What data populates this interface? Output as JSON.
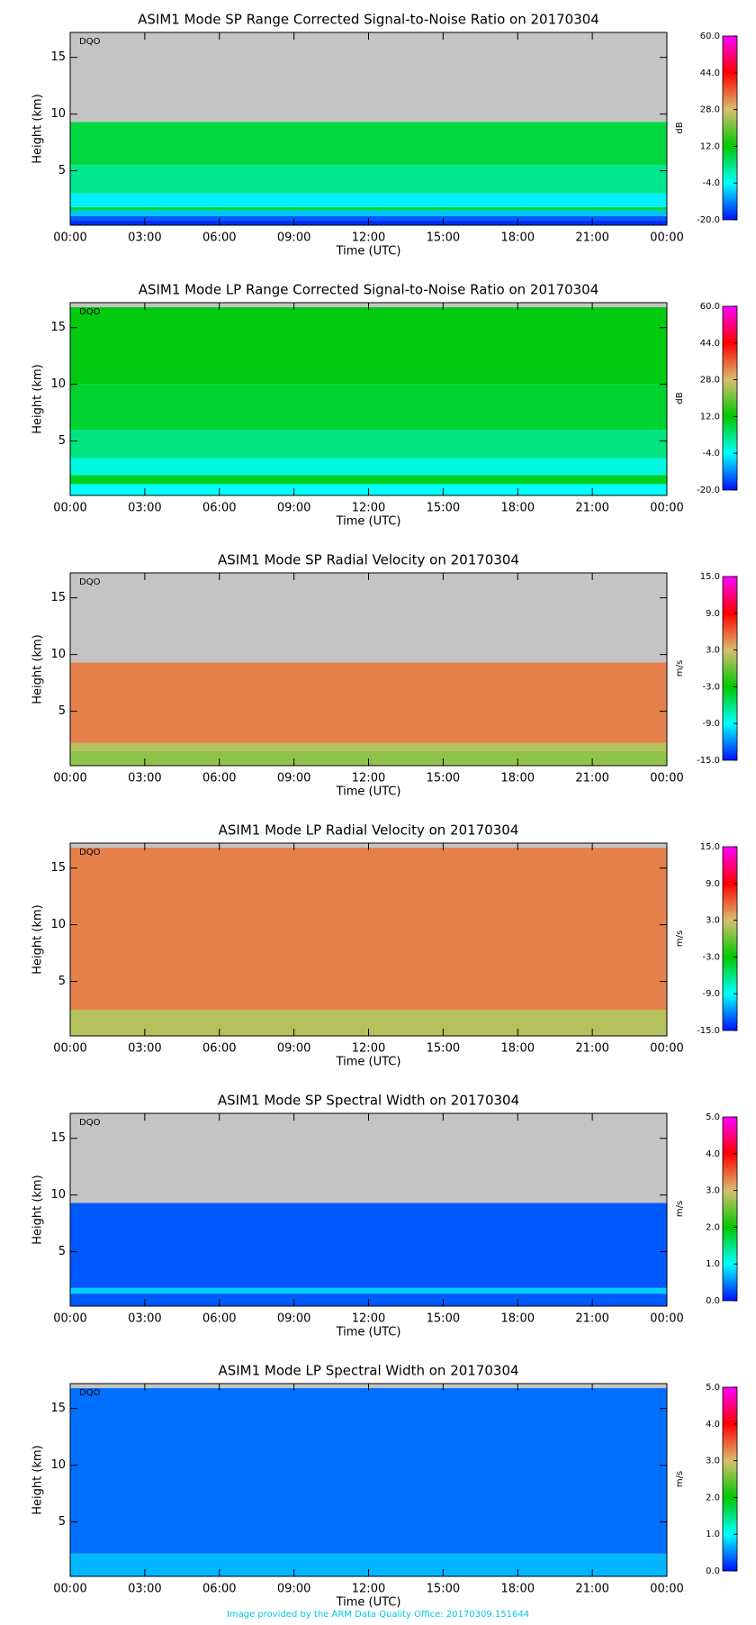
{
  "chart_data": [
    {
      "type": "heatmap",
      "title": "ASIM1 Mode SP Range Corrected Signal-to-Noise Ratio on 20170304",
      "xlabel": "Time (UTC)",
      "ylabel": "Height (km)",
      "annotation": "DQO",
      "xlim": [
        0,
        24
      ],
      "xticks": [
        {
          "value": 0,
          "label": "00:00"
        },
        {
          "value": 3,
          "label": "03:00"
        },
        {
          "value": 6,
          "label": "06:00"
        },
        {
          "value": 9,
          "label": "09:00"
        },
        {
          "value": 12,
          "label": "12:00"
        },
        {
          "value": 15,
          "label": "15:00"
        },
        {
          "value": 18,
          "label": "18:00"
        },
        {
          "value": 21,
          "label": "21:00"
        },
        {
          "value": 24,
          "label": "00:00"
        }
      ],
      "ylim": [
        0.2,
        17.2
      ],
      "yticks": [
        5,
        10,
        15
      ],
      "y_edges": [
        0.2,
        0.6,
        1.0,
        1.5,
        1.8,
        3.0,
        5.5,
        9.3,
        17.2
      ],
      "values": [
        -18,
        -15,
        -8,
        8,
        -5,
        3,
        8,
        null
      ],
      "colorbar_label": "dB",
      "zlim": [
        -20,
        60
      ],
      "zticks": [
        {
          "value": -20,
          "label": "-20.0"
        },
        {
          "value": -4,
          "label": "-4.0"
        },
        {
          "value": 12,
          "label": "12.0"
        },
        {
          "value": 28,
          "label": "28.0"
        },
        {
          "value": 44,
          "label": "44.0"
        },
        {
          "value": 60,
          "label": "60.0"
        }
      ],
      "colormap": [
        "#0010ff",
        "#00ffff",
        "#00c800",
        "#d8c070",
        "#ff0000",
        "#ff00ff"
      ],
      "missing_color": "#c4c4c4"
    },
    {
      "type": "heatmap",
      "title": "ASIM1 Mode LP Range Corrected Signal-to-Noise Ratio on 20170304",
      "xlabel": "Time (UTC)",
      "ylabel": "Height (km)",
      "annotation": "DQO",
      "xlim": [
        0,
        24
      ],
      "xticks": [
        {
          "value": 0,
          "label": "00:00"
        },
        {
          "value": 3,
          "label": "03:00"
        },
        {
          "value": 6,
          "label": "06:00"
        },
        {
          "value": 9,
          "label": "09:00"
        },
        {
          "value": 12,
          "label": "12:00"
        },
        {
          "value": 15,
          "label": "15:00"
        },
        {
          "value": 18,
          "label": "18:00"
        },
        {
          "value": 21,
          "label": "21:00"
        },
        {
          "value": 24,
          "label": "00:00"
        }
      ],
      "ylim": [
        0.2,
        17.2
      ],
      "yticks": [
        5,
        10,
        15
      ],
      "y_edges": [
        0.2,
        1.2,
        2.0,
        3.5,
        6.0,
        10.0,
        16.8,
        17.2
      ],
      "values": [
        -4,
        10,
        -2,
        4,
        9,
        11,
        null
      ],
      "colorbar_label": "dB",
      "zlim": [
        -20,
        60
      ],
      "zticks": [
        {
          "value": -20,
          "label": "-20.0"
        },
        {
          "value": -4,
          "label": "-4.0"
        },
        {
          "value": 12,
          "label": "12.0"
        },
        {
          "value": 28,
          "label": "28.0"
        },
        {
          "value": 44,
          "label": "44.0"
        },
        {
          "value": 60,
          "label": "60.0"
        }
      ],
      "colormap": [
        "#0010ff",
        "#00ffff",
        "#00c800",
        "#d8c070",
        "#ff0000",
        "#ff00ff"
      ],
      "missing_color": "#c4c4c4"
    },
    {
      "type": "heatmap",
      "title": "ASIM1 Mode SP Radial Velocity  on 20170304",
      "xlabel": "Time (UTC)",
      "ylabel": "Height (km)",
      "annotation": "DQO",
      "xlim": [
        0,
        24
      ],
      "xticks": [
        {
          "value": 0,
          "label": "00:00"
        },
        {
          "value": 3,
          "label": "03:00"
        },
        {
          "value": 6,
          "label": "06:00"
        },
        {
          "value": 9,
          "label": "09:00"
        },
        {
          "value": 12,
          "label": "12:00"
        },
        {
          "value": 15,
          "label": "15:00"
        },
        {
          "value": 18,
          "label": "18:00"
        },
        {
          "value": 21,
          "label": "21:00"
        },
        {
          "value": 24,
          "label": "00:00"
        }
      ],
      "ylim": [
        0.2,
        17.2
      ],
      "yticks": [
        5,
        10,
        15
      ],
      "y_edges": [
        0.2,
        1.5,
        2.2,
        9.3,
        17.2
      ],
      "values": [
        1,
        2,
        5,
        null
      ],
      "colorbar_label": "m/s",
      "zlim": [
        -15,
        15
      ],
      "zticks": [
        {
          "value": -15,
          "label": "-15.0"
        },
        {
          "value": -9,
          "label": "-9.0"
        },
        {
          "value": -3,
          "label": "-3.0"
        },
        {
          "value": 3,
          "label": "3.0"
        },
        {
          "value": 9,
          "label": "9.0"
        },
        {
          "value": 15,
          "label": "15.0"
        }
      ],
      "colormap": [
        "#0010ff",
        "#00ffff",
        "#00c800",
        "#d8c070",
        "#ff0000",
        "#ff00ff"
      ],
      "missing_color": "#c4c4c4"
    },
    {
      "type": "heatmap",
      "title": "ASIM1 Mode LP Radial Velocity  on 20170304",
      "xlabel": "Time (UTC)",
      "ylabel": "Height (km)",
      "annotation": "DQO",
      "xlim": [
        0,
        24
      ],
      "xticks": [
        {
          "value": 0,
          "label": "00:00"
        },
        {
          "value": 3,
          "label": "03:00"
        },
        {
          "value": 6,
          "label": "06:00"
        },
        {
          "value": 9,
          "label": "09:00"
        },
        {
          "value": 12,
          "label": "12:00"
        },
        {
          "value": 15,
          "label": "15:00"
        },
        {
          "value": 18,
          "label": "18:00"
        },
        {
          "value": 21,
          "label": "21:00"
        },
        {
          "value": 24,
          "label": "00:00"
        }
      ],
      "ylim": [
        0.2,
        17.2
      ],
      "yticks": [
        5,
        10,
        15
      ],
      "y_edges": [
        0.2,
        2.5,
        16.8,
        17.2
      ],
      "values": [
        2,
        5,
        null
      ],
      "colorbar_label": "m/s",
      "zlim": [
        -15,
        15
      ],
      "zticks": [
        {
          "value": -15,
          "label": "-15.0"
        },
        {
          "value": -9,
          "label": "-9.0"
        },
        {
          "value": -3,
          "label": "-3.0"
        },
        {
          "value": 3,
          "label": "3.0"
        },
        {
          "value": 9,
          "label": "9.0"
        },
        {
          "value": 15,
          "label": "15.0"
        }
      ],
      "colormap": [
        "#0010ff",
        "#00ffff",
        "#00c800",
        "#d8c070",
        "#ff0000",
        "#ff00ff"
      ],
      "missing_color": "#c4c4c4"
    },
    {
      "type": "heatmap",
      "title": "ASIM1 Mode SP Spectral Width  on 20170304",
      "xlabel": "Time (UTC)",
      "ylabel": "Height (km)",
      "annotation": "DQO",
      "xlim": [
        0,
        24
      ],
      "xticks": [
        {
          "value": 0,
          "label": "00:00"
        },
        {
          "value": 3,
          "label": "03:00"
        },
        {
          "value": 6,
          "label": "06:00"
        },
        {
          "value": 9,
          "label": "09:00"
        },
        {
          "value": 12,
          "label": "12:00"
        },
        {
          "value": 15,
          "label": "15:00"
        },
        {
          "value": 18,
          "label": "18:00"
        },
        {
          "value": 21,
          "label": "21:00"
        },
        {
          "value": 24,
          "label": "00:00"
        }
      ],
      "ylim": [
        0.2,
        17.2
      ],
      "yticks": [
        5,
        10,
        15
      ],
      "y_edges": [
        0.2,
        1.3,
        1.8,
        9.3,
        17.2
      ],
      "values": [
        0.3,
        0.8,
        0.3,
        null
      ],
      "colorbar_label": "m/s",
      "zlim": [
        0,
        5
      ],
      "zticks": [
        {
          "value": 0,
          "label": "0.0"
        },
        {
          "value": 1,
          "label": "1.0"
        },
        {
          "value": 2,
          "label": "2.0"
        },
        {
          "value": 3,
          "label": "3.0"
        },
        {
          "value": 4,
          "label": "4.0"
        },
        {
          "value": 5,
          "label": "5.0"
        }
      ],
      "colormap": [
        "#0010ff",
        "#00ffff",
        "#00c800",
        "#d8c070",
        "#ff0000",
        "#ff00ff"
      ],
      "missing_color": "#c4c4c4"
    },
    {
      "type": "heatmap",
      "title": "ASIM1 Mode LP Spectral Width  on 20170304",
      "xlabel": "Time (UTC)",
      "ylabel": "Height (km)",
      "annotation": "DQO",
      "xlim": [
        0,
        24
      ],
      "xticks": [
        {
          "value": 0,
          "label": "00:00"
        },
        {
          "value": 3,
          "label": "03:00"
        },
        {
          "value": 6,
          "label": "06:00"
        },
        {
          "value": 9,
          "label": "09:00"
        },
        {
          "value": 12,
          "label": "12:00"
        },
        {
          "value": 15,
          "label": "15:00"
        },
        {
          "value": 18,
          "label": "18:00"
        },
        {
          "value": 21,
          "label": "21:00"
        },
        {
          "value": 24,
          "label": "00:00"
        }
      ],
      "ylim": [
        0.2,
        17.2
      ],
      "yticks": [
        5,
        10,
        15
      ],
      "y_edges": [
        0.2,
        2.2,
        16.8,
        17.2
      ],
      "values": [
        0.7,
        0.4,
        null
      ],
      "colorbar_label": "m/s",
      "zlim": [
        0,
        5
      ],
      "zticks": [
        {
          "value": 0,
          "label": "0.0"
        },
        {
          "value": 1,
          "label": "1.0"
        },
        {
          "value": 2,
          "label": "2.0"
        },
        {
          "value": 3,
          "label": "3.0"
        },
        {
          "value": 4,
          "label": "4.0"
        },
        {
          "value": 5,
          "label": "5.0"
        }
      ],
      "colormap": [
        "#0010ff",
        "#00ffff",
        "#00c800",
        "#d8c070",
        "#ff0000",
        "#ff00ff"
      ],
      "missing_color": "#c4c4c4"
    }
  ],
  "footer": "Image provided by the ARM Data Quality Office: 20170309.151644"
}
